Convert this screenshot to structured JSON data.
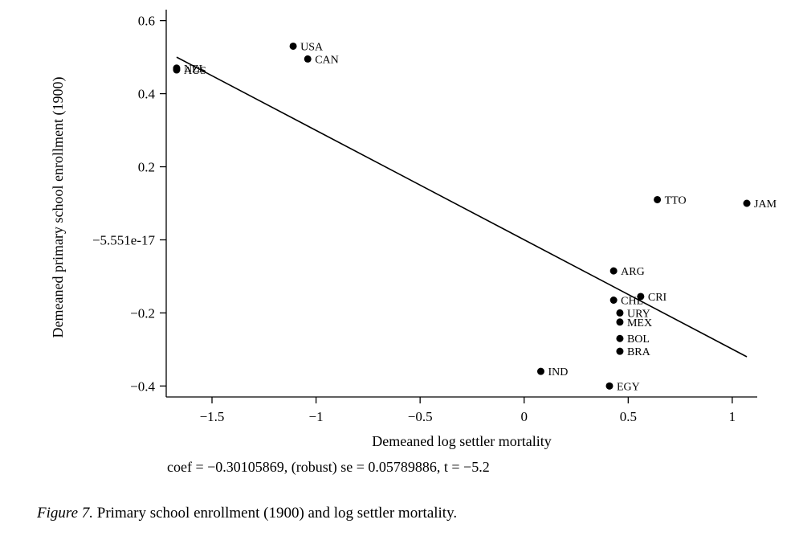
{
  "chart_data": {
    "type": "scatter",
    "xlabel": "Demeaned log settler mortality",
    "ylabel": "Demeaned primary school enrollment (1900)",
    "xlim": [
      -1.72,
      1.12
    ],
    "ylim": [
      -0.43,
      0.63
    ],
    "x_ticks": [
      -1.5,
      -1,
      -0.5,
      0,
      0.5,
      1
    ],
    "x_tick_labels": [
      "−1.5",
      "−1",
      "−0.5",
      "0",
      "0.5",
      "1"
    ],
    "y_ticks": [
      -0.4,
      -0.2,
      0,
      0.2,
      0.4,
      0.6
    ],
    "y_tick_labels": [
      "−0.4",
      "−0.2",
      "−5.551e-17",
      "0.2",
      "0.4",
      "0.6"
    ],
    "grid": false,
    "points": [
      {
        "label": "NZL",
        "x": -1.67,
        "y": 0.47
      },
      {
        "label": "AUS",
        "x": -1.67,
        "y": 0.465
      },
      {
        "label": "USA",
        "x": -1.11,
        "y": 0.53
      },
      {
        "label": "CAN",
        "x": -1.04,
        "y": 0.495
      },
      {
        "label": "TTO",
        "x": 0.64,
        "y": 0.11
      },
      {
        "label": "JAM",
        "x": 1.07,
        "y": 0.1
      },
      {
        "label": "ARG",
        "x": 0.43,
        "y": -0.085
      },
      {
        "label": "CRI",
        "x": 0.56,
        "y": -0.155
      },
      {
        "label": "CHL",
        "x": 0.43,
        "y": -0.165
      },
      {
        "label": "URY",
        "x": 0.46,
        "y": -0.2
      },
      {
        "label": "MEX",
        "x": 0.46,
        "y": -0.225
      },
      {
        "label": "BOL",
        "x": 0.46,
        "y": -0.27
      },
      {
        "label": "BRA",
        "x": 0.46,
        "y": -0.305
      },
      {
        "label": "IND",
        "x": 0.08,
        "y": -0.36
      },
      {
        "label": "EGY",
        "x": 0.41,
        "y": -0.4
      }
    ],
    "fit_line": {
      "x": [
        -1.67,
        1.07
      ],
      "y": [
        0.5,
        -0.32
      ]
    },
    "annotation": "coef = −0.30105869, (robust) se = 0.05789886, t = −5.2"
  },
  "caption": {
    "figure_label": "Figure 7.",
    "text": "Primary school enrollment (1900) and log settler mortality."
  }
}
